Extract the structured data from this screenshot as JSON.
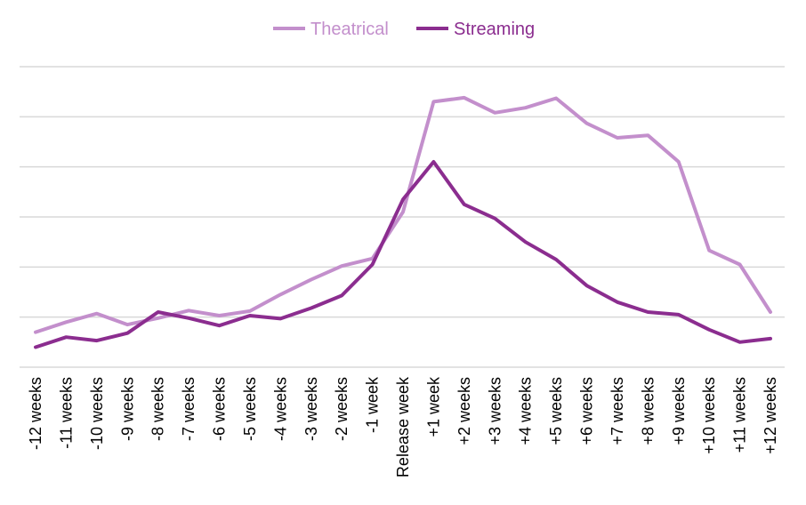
{
  "chart_data": {
    "type": "line",
    "categories": [
      "-12 weeks",
      "-11 weeks",
      "-10 weeks",
      "-9 weeks",
      "-8 weeks",
      "-7 weeks",
      "-6 weeks",
      "-5 weeks",
      "-4 weeks",
      "-3 weeks",
      "-2 weeks",
      "-1 week",
      "Release week",
      "+1 week",
      "+2 weeks",
      "+3 weeks",
      "+4 weeks",
      "+5 weeks",
      "+6 weeks",
      "+7 weeks",
      "+8 weeks",
      "+9 weeks",
      "+10 weeks",
      "+11 weeks",
      "+12 weeks"
    ],
    "series": [
      {
        "name": "Theatrical",
        "color": "#c38fcc",
        "values": [
          0.7,
          0.9,
          1.07,
          0.85,
          0.98,
          1.13,
          1.03,
          1.12,
          1.45,
          1.75,
          2.02,
          2.17,
          3.1,
          5.3,
          5.38,
          5.08,
          5.18,
          5.37,
          4.87,
          4.58,
          4.63,
          4.1,
          2.33,
          2.05,
          1.1
        ]
      },
      {
        "name": "Streaming",
        "color": "#8b2d8f",
        "values": [
          0.4,
          0.6,
          0.53,
          0.68,
          1.1,
          0.98,
          0.83,
          1.03,
          0.97,
          1.18,
          1.43,
          2.05,
          3.35,
          4.1,
          3.25,
          2.97,
          2.5,
          2.15,
          1.63,
          1.3,
          1.1,
          1.05,
          0.75,
          0.5,
          0.57
        ]
      }
    ],
    "ylim": [
      0,
      6
    ],
    "grid": true,
    "y_tick_labels_shown": false,
    "legend_placement": "top-center"
  }
}
